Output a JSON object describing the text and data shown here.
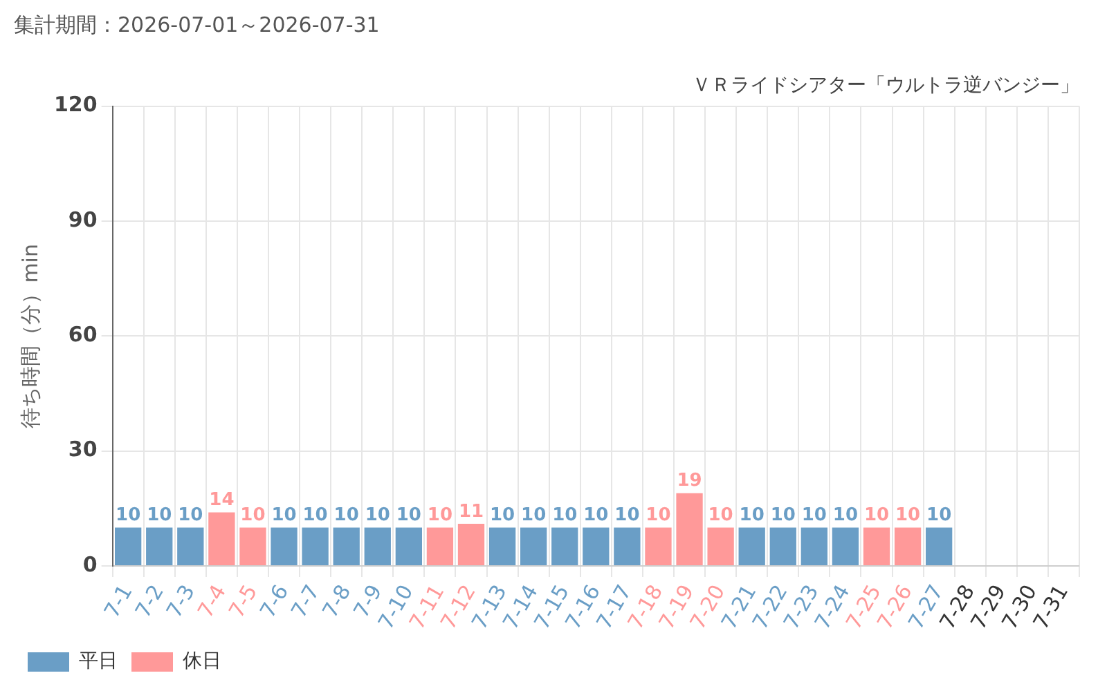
{
  "chart_data": {
    "type": "bar",
    "title": "集計期間：2026-07-01～2026-07-31",
    "subtitle": "ＶＲライドシアター「ウルトラ逆バンジー」",
    "ylabel": "待ち時間（分）min",
    "categories": [
      "7-1",
      "7-2",
      "7-3",
      "7-4",
      "7-5",
      "7-6",
      "7-7",
      "7-8",
      "7-9",
      "7-10",
      "7-11",
      "7-12",
      "7-13",
      "7-14",
      "7-15",
      "7-16",
      "7-17",
      "7-18",
      "7-19",
      "7-20",
      "7-21",
      "7-22",
      "7-23",
      "7-24",
      "7-25",
      "7-26",
      "7-27",
      "7-28",
      "7-29",
      "7-30",
      "7-31"
    ],
    "series": [
      {
        "name": "平日",
        "color": "#6a9ec6",
        "values": [
          10,
          10,
          10,
          null,
          null,
          10,
          10,
          10,
          10,
          10,
          null,
          null,
          10,
          10,
          10,
          10,
          10,
          null,
          null,
          null,
          10,
          10,
          10,
          10,
          null,
          null,
          10,
          null,
          null,
          null,
          null
        ]
      },
      {
        "name": "休日",
        "color": "#ff9999",
        "values": [
          null,
          null,
          null,
          14,
          10,
          null,
          null,
          null,
          null,
          null,
          10,
          11,
          null,
          null,
          null,
          null,
          null,
          10,
          19,
          10,
          null,
          null,
          null,
          null,
          10,
          10,
          null,
          null,
          null,
          null,
          null
        ]
      }
    ],
    "stacked": true,
    "ylim": [
      0,
      120
    ],
    "yticks": [
      0,
      30,
      60,
      90,
      120
    ],
    "grid": true,
    "legend": "bottom left",
    "data_labels": true
  }
}
